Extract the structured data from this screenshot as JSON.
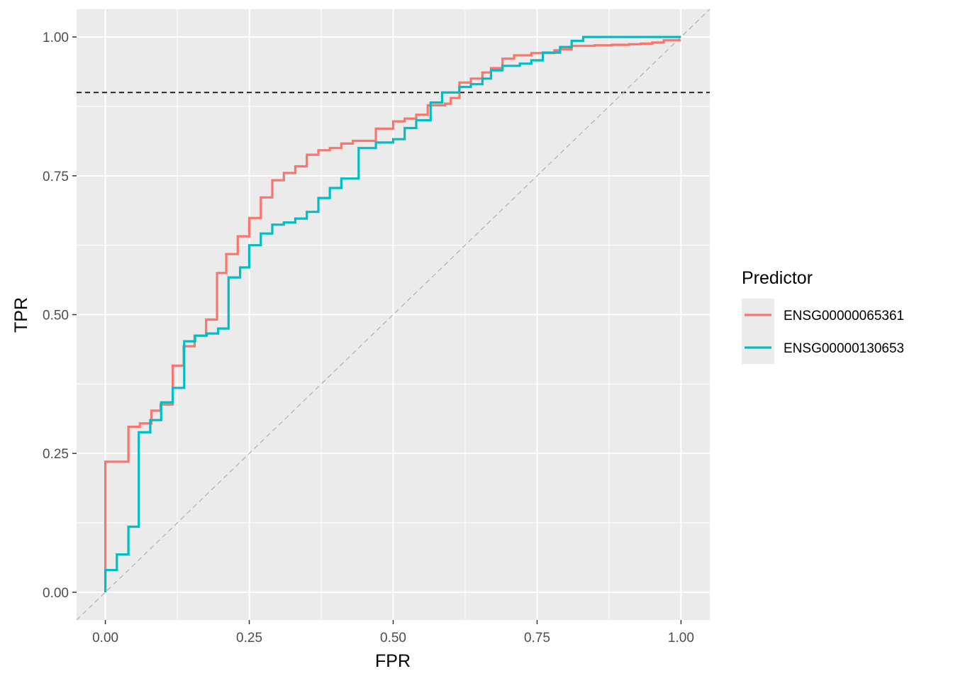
{
  "chart_data": {
    "type": "line",
    "xlabel": "FPR",
    "ylabel": "TPR",
    "xlim": [
      -0.05,
      1.05
    ],
    "ylim": [
      -0.05,
      1.05
    ],
    "x_ticks": [
      0,
      0.25,
      0.5,
      0.75,
      1
    ],
    "y_ticks": [
      0,
      0.25,
      0.5,
      0.75,
      1
    ],
    "x_tick_labels": [
      "0.00",
      "0.25",
      "0.50",
      "0.75",
      "1.00"
    ],
    "y_tick_labels": [
      "0.00",
      "0.25",
      "0.50",
      "0.75",
      "1.00"
    ],
    "grid": true,
    "panel_background": "#ebebeb",
    "reference_lines": [
      {
        "kind": "hline",
        "y": 0.9,
        "style": "dashed",
        "color": "#000000"
      },
      {
        "kind": "diagonal",
        "intercept": 0,
        "slope": 1,
        "style": "dashed",
        "color": "#b3b3b3"
      }
    ],
    "legend": {
      "title": "Predictor",
      "position": "right"
    },
    "series": [
      {
        "name": "ENSG00000065361",
        "color": "#F8766D",
        "step": true,
        "x": [
          0,
          0,
          0.04,
          0.04,
          0.06,
          0.06,
          0.08,
          0.08,
          0.096,
          0.096,
          0.117,
          0.117,
          0.136,
          0.136,
          0.155,
          0.155,
          0.175,
          0.175,
          0.194,
          0.194,
          0.21,
          0.21,
          0.23,
          0.23,
          0.25,
          0.25,
          0.27,
          0.27,
          0.29,
          0.29,
          0.31,
          0.31,
          0.33,
          0.33,
          0.35,
          0.35,
          0.37,
          0.37,
          0.39,
          0.39,
          0.41,
          0.41,
          0.43,
          0.43,
          0.47,
          0.47,
          0.5,
          0.5,
          0.52,
          0.52,
          0.54,
          0.54,
          0.56,
          0.56,
          0.59,
          0.59,
          0.6,
          0.6,
          0.615,
          0.615,
          0.635,
          0.635,
          0.655,
          0.655,
          0.67,
          0.67,
          0.69,
          0.69,
          0.71,
          0.71,
          0.74,
          0.74,
          0.78,
          0.78,
          0.79,
          0.79,
          0.81,
          0.81,
          0.85,
          0.85,
          0.88,
          0.88,
          0.91,
          0.91,
          0.93,
          0.93,
          0.95,
          0.95,
          0.97,
          0.97,
          1
        ],
        "y": [
          0,
          0.235,
          0.235,
          0.298,
          0.298,
          0.304,
          0.304,
          0.327,
          0.327,
          0.338,
          0.338,
          0.408,
          0.408,
          0.443,
          0.443,
          0.462,
          0.462,
          0.491,
          0.491,
          0.575,
          0.575,
          0.609,
          0.609,
          0.641,
          0.641,
          0.674,
          0.674,
          0.711,
          0.711,
          0.742,
          0.742,
          0.755,
          0.755,
          0.767,
          0.767,
          0.788,
          0.788,
          0.796,
          0.796,
          0.8,
          0.8,
          0.808,
          0.808,
          0.813,
          0.813,
          0.835,
          0.835,
          0.848,
          0.848,
          0.853,
          0.853,
          0.86,
          0.86,
          0.877,
          0.877,
          0.88,
          0.88,
          0.89,
          0.89,
          0.918,
          0.918,
          0.925,
          0.925,
          0.936,
          0.936,
          0.944,
          0.944,
          0.961,
          0.961,
          0.967,
          0.967,
          0.971,
          0.971,
          0.976,
          0.976,
          0.978,
          0.978,
          0.984,
          0.984,
          0.985,
          0.985,
          0.986,
          0.986,
          0.987,
          0.987,
          0.988,
          0.988,
          0.99,
          0.99,
          0.994,
          0.994
        ]
      },
      {
        "name": "ENSG00000130653",
        "color": "#00BFC4",
        "step": true,
        "x": [
          0,
          0,
          0.02,
          0.02,
          0.04,
          0.04,
          0.058,
          0.058,
          0.078,
          0.078,
          0.097,
          0.097,
          0.117,
          0.117,
          0.137,
          0.137,
          0.156,
          0.156,
          0.176,
          0.176,
          0.196,
          0.196,
          0.214,
          0.214,
          0.234,
          0.234,
          0.25,
          0.25,
          0.27,
          0.27,
          0.29,
          0.29,
          0.31,
          0.31,
          0.33,
          0.33,
          0.35,
          0.35,
          0.37,
          0.37,
          0.39,
          0.39,
          0.41,
          0.41,
          0.44,
          0.44,
          0.47,
          0.47,
          0.5,
          0.5,
          0.52,
          0.52,
          0.54,
          0.54,
          0.565,
          0.565,
          0.585,
          0.585,
          0.615,
          0.615,
          0.635,
          0.635,
          0.655,
          0.655,
          0.67,
          0.67,
          0.69,
          0.69,
          0.72,
          0.72,
          0.74,
          0.74,
          0.76,
          0.76,
          0.79,
          0.79,
          0.81,
          0.81,
          0.83,
          0.83,
          0.86,
          0.86,
          0.9,
          0.9,
          1
        ],
        "y": [
          0,
          0.04,
          0.04,
          0.068,
          0.068,
          0.118,
          0.118,
          0.288,
          0.288,
          0.31,
          0.31,
          0.342,
          0.342,
          0.368,
          0.368,
          0.452,
          0.452,
          0.462,
          0.462,
          0.466,
          0.466,
          0.475,
          0.475,
          0.567,
          0.567,
          0.585,
          0.585,
          0.625,
          0.625,
          0.646,
          0.646,
          0.662,
          0.662,
          0.666,
          0.666,
          0.673,
          0.673,
          0.685,
          0.685,
          0.71,
          0.71,
          0.728,
          0.728,
          0.745,
          0.745,
          0.8,
          0.8,
          0.81,
          0.81,
          0.816,
          0.816,
          0.836,
          0.836,
          0.85,
          0.85,
          0.882,
          0.882,
          0.9,
          0.9,
          0.91,
          0.91,
          0.915,
          0.915,
          0.925,
          0.925,
          0.94,
          0.94,
          0.948,
          0.948,
          0.952,
          0.952,
          0.958,
          0.958,
          0.972,
          0.972,
          0.982,
          0.982,
          0.993,
          0.993,
          1,
          1,
          1,
          1,
          1,
          1
        ]
      }
    ]
  }
}
